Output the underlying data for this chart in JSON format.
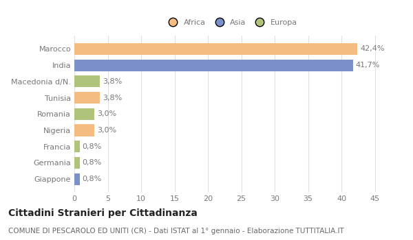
{
  "categories": [
    "Marocco",
    "India",
    "Macedonia d/N.",
    "Tunisia",
    "Romania",
    "Nigeria",
    "Francia",
    "Germania",
    "Giappone"
  ],
  "values": [
    42.4,
    41.7,
    3.8,
    3.8,
    3.0,
    3.0,
    0.8,
    0.8,
    0.8
  ],
  "labels": [
    "42,4%",
    "41,7%",
    "3,8%",
    "3,8%",
    "3,0%",
    "3,0%",
    "0,8%",
    "0,8%",
    "0,8%"
  ],
  "colors": [
    "#f5bc82",
    "#7b90c9",
    "#afc47a",
    "#f5bc82",
    "#afc47a",
    "#f5bc82",
    "#afc47a",
    "#afc47a",
    "#7b90c9"
  ],
  "legend_labels": [
    "Africa",
    "Asia",
    "Europa"
  ],
  "legend_colors": [
    "#f5bc82",
    "#7b90c9",
    "#afc47a"
  ],
  "title": "Cittadini Stranieri per Cittadinanza",
  "subtitle": "COMUNE DI PESCAROLO ED UNITI (CR) - Dati ISTAT al 1° gennaio - Elaborazione TUTTITALIA.IT",
  "xlim": [
    0,
    47
  ],
  "xticks": [
    0,
    5,
    10,
    15,
    20,
    25,
    30,
    35,
    40,
    45
  ],
  "background_color": "#ffffff",
  "grid_color": "#e0e0e0",
  "bar_height": 0.72,
  "label_fontsize": 8,
  "tick_fontsize": 8,
  "title_fontsize": 10,
  "subtitle_fontsize": 7.5
}
